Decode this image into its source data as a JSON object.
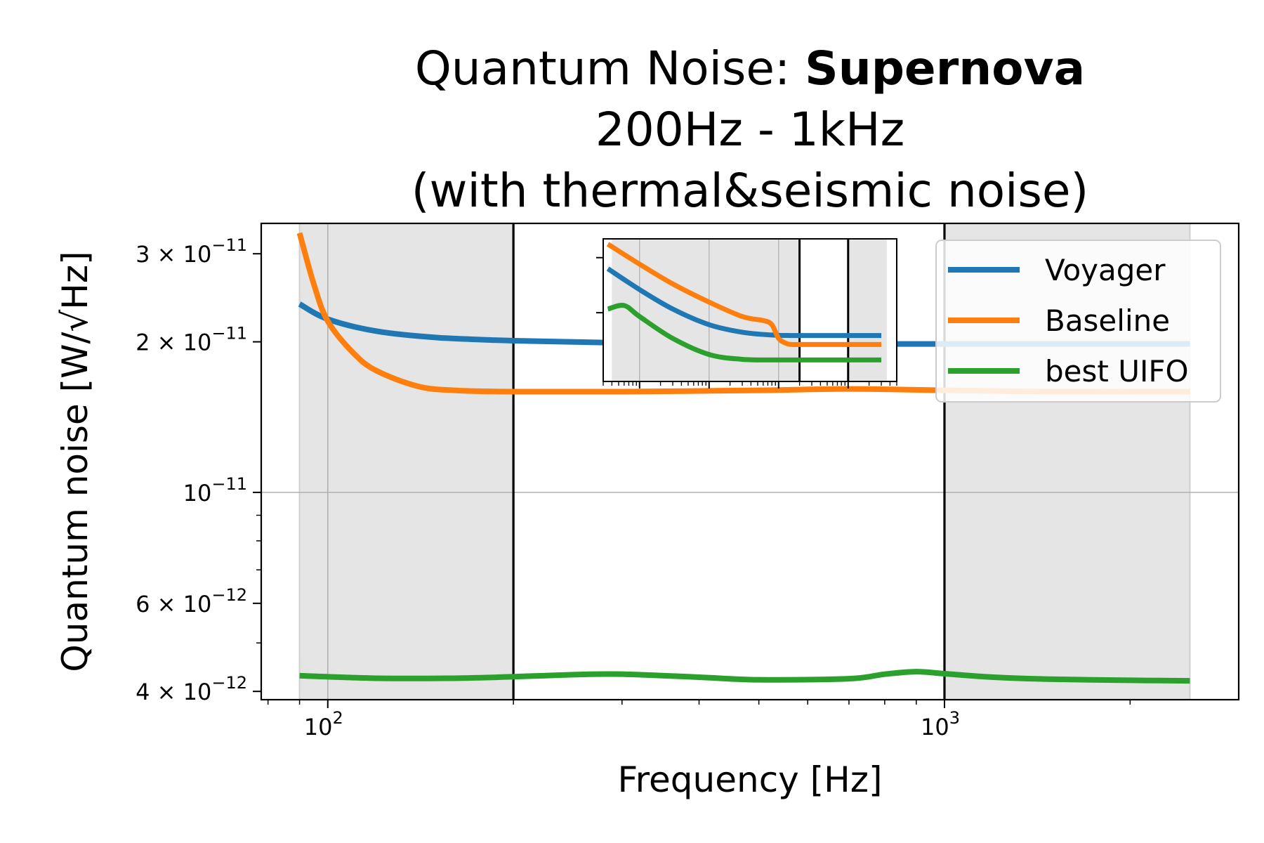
{
  "chart_data": [
    {
      "type": "line",
      "title": {
        "prefix": "Quantum Noise: ",
        "bold": "Supernova",
        "line2": "200Hz - 1kHz",
        "line3": "(with thermal&seismic noise)"
      },
      "xlabel": "Frequency [Hz]",
      "ylabel": "Quantum noise [W/√Hz]",
      "xscale": "log",
      "yscale": "log",
      "xlim": [
        78,
        3000
      ],
      "ylim": [
        3.85e-12,
        3.45e-11
      ],
      "x_ticks": [
        {
          "value": 100,
          "label": "10",
          "exp": "2"
        },
        {
          "value": 1000,
          "label": "10",
          "exp": "3"
        }
      ],
      "y_ticks": [
        {
          "value": 3e-11,
          "mant": "3 × 10",
          "exp": "−11"
        },
        {
          "value": 2e-11,
          "mant": "2 × 10",
          "exp": "−11"
        },
        {
          "value": 1e-11,
          "mant": "10",
          "exp": "−11"
        },
        {
          "value": 6e-12,
          "mant": "6 × 10",
          "exp": "−12"
        },
        {
          "value": 4e-12,
          "mant": "4 × 10",
          "exp": "−12"
        }
      ],
      "grid": true,
      "shaded_bands": [
        [
          90,
          200
        ],
        [
          1000,
          2500
        ]
      ],
      "vlines": [
        200,
        1000
      ],
      "legend": "upper right",
      "series": [
        {
          "name": "Voyager",
          "color": "#1f77b4",
          "x": [
            90,
            100,
            120,
            150,
            200,
            300,
            500,
            700,
            1000,
            1500,
            2500
          ],
          "values": [
            2.38e-11,
            2.22e-11,
            2.1e-11,
            2.04e-11,
            2.01e-11,
            1.99e-11,
            1.98e-11,
            1.98e-11,
            1.98e-11,
            1.98e-11,
            1.98e-11
          ]
        },
        {
          "name": "Baseline",
          "color": "#ff7f0e",
          "x": [
            90,
            95,
            100,
            110,
            120,
            140,
            160,
            200,
            300,
            500,
            700,
            1000,
            1500,
            2500
          ],
          "values": [
            3.3e-11,
            2.6e-11,
            2.2e-11,
            1.9e-11,
            1.75e-11,
            1.63e-11,
            1.6e-11,
            1.59e-11,
            1.59e-11,
            1.6e-11,
            1.61e-11,
            1.6e-11,
            1.59e-11,
            1.59e-11
          ]
        },
        {
          "name": "best UIFO",
          "color": "#2ca02c",
          "x": [
            90,
            120,
            160,
            200,
            250,
            300,
            400,
            500,
            700,
            800,
            900,
            1000,
            1200,
            1500,
            2000,
            2500
          ],
          "values": [
            4.3e-12,
            4.25e-12,
            4.25e-12,
            4.28e-12,
            4.32e-12,
            4.33e-12,
            4.27e-12,
            4.22e-12,
            4.24e-12,
            4.33e-12,
            4.38e-12,
            4.34e-12,
            4.27e-12,
            4.23e-12,
            4.21e-12,
            4.2e-12
          ]
        }
      ]
    },
    {
      "type": "line",
      "role": "inset",
      "xscale": "log",
      "yscale": "log",
      "xlim": [
        0.3,
        5000
      ],
      "ylim": [
        1.2e-11,
        5.5e-11
      ],
      "y_ticks": [
        4.5e-11,
        2.5e-11
      ],
      "grid": true,
      "shaded_bands": [
        [
          0.4,
          200
        ],
        [
          1000,
          3600
        ]
      ],
      "vlines": [
        200,
        1000
      ],
      "series": [
        {
          "name": "Voyager",
          "color": "#1f77b4",
          "x": [
            0.35,
            1,
            3,
            10,
            30,
            80,
            150,
            200,
            500,
            1000,
            3000
          ],
          "values": [
            4e-11,
            3.2e-11,
            2.6e-11,
            2.2e-11,
            2.03e-11,
            1.97e-11,
            1.96e-11,
            1.96e-11,
            1.96e-11,
            1.96e-11,
            1.96e-11
          ]
        },
        {
          "name": "Baseline",
          "color": "#ff7f0e",
          "x": [
            0.35,
            1,
            3,
            10,
            30,
            60,
            80,
            100,
            130,
            160,
            200,
            500,
            1000,
            3000
          ],
          "values": [
            5.2e-11,
            4.2e-11,
            3.4e-11,
            2.8e-11,
            2.4e-11,
            2.3e-11,
            2.2e-11,
            1.9e-11,
            1.8e-11,
            1.78e-11,
            1.78e-11,
            1.78e-11,
            1.78e-11,
            1.78e-11
          ]
        },
        {
          "name": "best UIFO",
          "color": "#2ca02c",
          "x": [
            0.35,
            0.6,
            1,
            3,
            10,
            30,
            80,
            200,
            500,
            1000,
            3000
          ],
          "values": [
            2.6e-11,
            2.7e-11,
            2.4e-11,
            1.9e-11,
            1.6e-11,
            1.52e-11,
            1.51e-11,
            1.51e-11,
            1.51e-11,
            1.51e-11,
            1.51e-11
          ]
        }
      ]
    }
  ]
}
